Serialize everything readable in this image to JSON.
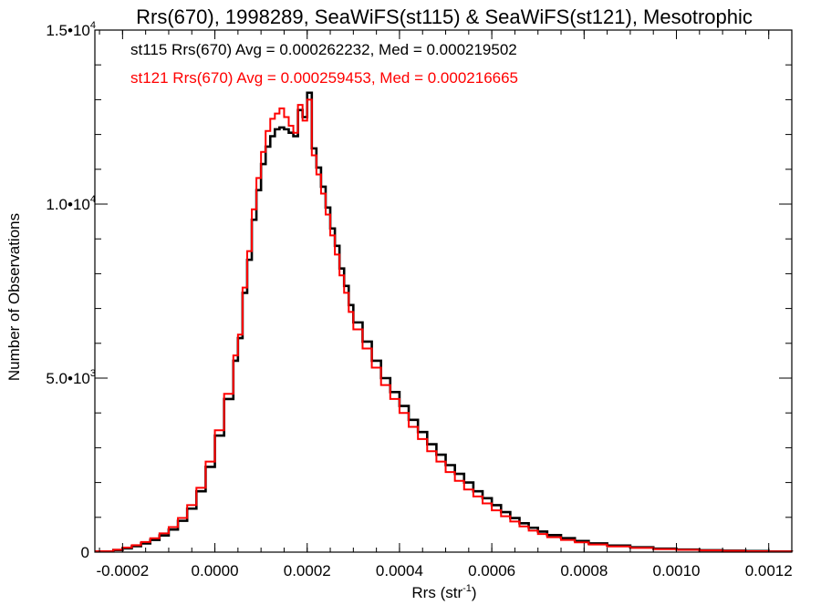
{
  "chart_data": {
    "type": "line",
    "step": true,
    "title": "Rrs(670), 1998289, SeaWiFS(st115) & SeaWiFS(st121), Mesotrophic",
    "xlabel": "Rrs (str",
    "xlabel_sup": "-1",
    "xlabel_close": ")",
    "ylabel": "Number of Observations",
    "xlim": [
      -0.00026,
      0.00125
    ],
    "ylim": [
      0,
      15000
    ],
    "x_ticks": [
      {
        "value": -0.0002,
        "label": "-0.0002"
      },
      {
        "value": 0.0,
        "label": "0.0000"
      },
      {
        "value": 0.0002,
        "label": "0.0002"
      },
      {
        "value": 0.0004,
        "label": "0.0004"
      },
      {
        "value": 0.0006,
        "label": "0.0006"
      },
      {
        "value": 0.0008,
        "label": "0.0008"
      },
      {
        "value": 0.001,
        "label": "0.0010"
      },
      {
        "value": 0.0012,
        "label": "0.0012"
      }
    ],
    "y_ticks": [
      {
        "value": 0,
        "label": "0",
        "sup": ""
      },
      {
        "value": 5000,
        "label": "5.0•10",
        "sup": "3"
      },
      {
        "value": 10000,
        "label": "1.0•10",
        "sup": "4"
      },
      {
        "value": 15000,
        "label": "1.5•10",
        "sup": "4"
      }
    ],
    "grid": false,
    "legend_position": "top-left",
    "series": [
      {
        "name": "st115",
        "legend": "st115 Rrs(670) Avg = 0.000262232, Med = 0.000219502",
        "color": "#000000",
        "x": [
          -0.00026,
          -0.00022,
          -0.0002,
          -0.00018,
          -0.00016,
          -0.00014,
          -0.00012,
          -0.0001,
          -8e-05,
          -6e-05,
          -4e-05,
          -2e-05,
          0.0,
          2e-05,
          4e-05,
          5e-05,
          6e-05,
          7e-05,
          8e-05,
          9e-05,
          0.0001,
          0.00011,
          0.00012,
          0.00013,
          0.00014,
          0.00015,
          0.00016,
          0.00017,
          0.00018,
          0.00019,
          0.0002,
          0.00021,
          0.00022,
          0.00023,
          0.00024,
          0.00025,
          0.00026,
          0.00027,
          0.00028,
          0.00029,
          0.0003,
          0.00032,
          0.00034,
          0.00036,
          0.00038,
          0.0004,
          0.00042,
          0.00044,
          0.00046,
          0.00048,
          0.0005,
          0.00052,
          0.00054,
          0.00056,
          0.00058,
          0.0006,
          0.00062,
          0.00064,
          0.00066,
          0.00068,
          0.0007,
          0.00072,
          0.00075,
          0.00078,
          0.00081,
          0.00085,
          0.0009,
          0.00095,
          0.001,
          0.00105,
          0.0011,
          0.00115,
          0.0012,
          0.00125
        ],
        "y": [
          20,
          60,
          110,
          170,
          250,
          350,
          480,
          650,
          900,
          1250,
          1750,
          2450,
          3350,
          4400,
          5500,
          6150,
          7450,
          8400,
          9550,
          10400,
          11150,
          11650,
          11950,
          12150,
          12200,
          12150,
          12050,
          11950,
          12700,
          12500,
          13200,
          11600,
          11050,
          10500,
          9900,
          9300,
          8800,
          8150,
          7650,
          7100,
          6600,
          6050,
          5500,
          5000,
          4600,
          4200,
          3800,
          3450,
          3100,
          2800,
          2500,
          2250,
          2000,
          1750,
          1550,
          1350,
          1150,
          980,
          830,
          700,
          590,
          490,
          400,
          320,
          250,
          190,
          140,
          100,
          75,
          55,
          40,
          30,
          20,
          15
        ]
      },
      {
        "name": "st121",
        "legend": "st121 Rrs(670) Avg = 0.000259453, Med = 0.000216665",
        "color": "#ff0000",
        "x": [
          -0.00026,
          -0.00022,
          -0.0002,
          -0.00018,
          -0.00016,
          -0.00014,
          -0.00012,
          -0.0001,
          -8e-05,
          -6e-05,
          -4e-05,
          -2e-05,
          0.0,
          2e-05,
          4e-05,
          5e-05,
          6e-05,
          7e-05,
          8e-05,
          9e-05,
          0.0001,
          0.00011,
          0.00012,
          0.00013,
          0.00014,
          0.00015,
          0.00016,
          0.00017,
          0.00018,
          0.00019,
          0.0002,
          0.00021,
          0.00022,
          0.00023,
          0.00024,
          0.00025,
          0.00026,
          0.00027,
          0.00028,
          0.00029,
          0.0003,
          0.00032,
          0.00034,
          0.00036,
          0.00038,
          0.0004,
          0.00042,
          0.00044,
          0.00046,
          0.00048,
          0.0005,
          0.00052,
          0.00054,
          0.00056,
          0.00058,
          0.0006,
          0.00062,
          0.00064,
          0.00066,
          0.00068,
          0.0007,
          0.00072,
          0.00075,
          0.00078,
          0.00081,
          0.00085,
          0.0009,
          0.00095,
          0.001,
          0.00105,
          0.0011,
          0.00115,
          0.0012,
          0.00125
        ],
        "y": [
          25,
          70,
          130,
          200,
          290,
          400,
          540,
          720,
          980,
          1350,
          1850,
          2600,
          3500,
          4550,
          5650,
          6250,
          7600,
          8650,
          9850,
          10750,
          11500,
          12100,
          12450,
          12600,
          12750,
          12500,
          12250,
          12050,
          12850,
          12400,
          13000,
          11400,
          10850,
          10300,
          9700,
          9100,
          8550,
          7950,
          7450,
          6900,
          6400,
          5850,
          5300,
          4800,
          4400,
          4000,
          3600,
          3250,
          2900,
          2600,
          2300,
          2050,
          1800,
          1600,
          1400,
          1200,
          1030,
          880,
          740,
          620,
          520,
          430,
          350,
          280,
          220,
          165,
          120,
          85,
          65,
          48,
          35,
          25,
          18,
          12
        ]
      }
    ]
  }
}
